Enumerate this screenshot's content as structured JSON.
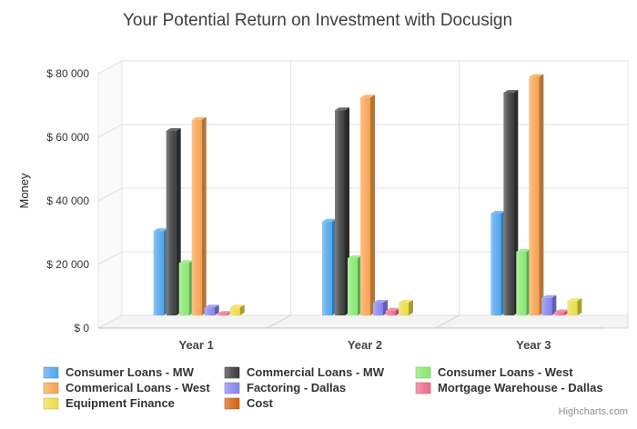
{
  "chart_data": {
    "type": "bar",
    "title": "Your Potential Return on Investment with Docusign",
    "xlabel": "",
    "ylabel": "Money",
    "categories": [
      "Year 1",
      "Year 2",
      "Year 3"
    ],
    "ylim": [
      0,
      80000
    ],
    "yticks": [
      0,
      20000,
      40000,
      60000,
      80000
    ],
    "ytick_labels": [
      "$ 0",
      "$ 20 000",
      "$ 40 000",
      "$ 60 000",
      "$ 80 000"
    ],
    "grid": true,
    "legend_position": "bottom",
    "style": "3d-column",
    "series": [
      {
        "name": "Consumer Loans - MW",
        "color": "#4ea6ee",
        "values": [
          26500,
          29500,
          32000
        ]
      },
      {
        "name": "Commercial Loans - MW",
        "color": "#3a3a3a",
        "values": [
          58000,
          64500,
          70000
        ]
      },
      {
        "name": "Consumer Loans - West",
        "color": "#86e86e",
        "values": [
          16500,
          18000,
          20000
        ]
      },
      {
        "name": "Commerical Loans - West",
        "color": "#f8a24e",
        "values": [
          61500,
          68500,
          75000
        ]
      },
      {
        "name": "Factoring - Dallas",
        "color": "#8484f0",
        "values": [
          2500,
          4000,
          5500
        ]
      },
      {
        "name": "Mortgage Warehouse - Dallas",
        "color": "#f06a8a",
        "values": [
          500,
          1500,
          1000
        ]
      },
      {
        "name": "Equipment Finance",
        "color": "#ecdc46",
        "values": [
          2500,
          4000,
          4500
        ]
      },
      {
        "name": "Cost",
        "color": "#d4600e",
        "values": [
          0,
          0,
          0
        ]
      }
    ]
  },
  "credit": "Highcharts.com"
}
